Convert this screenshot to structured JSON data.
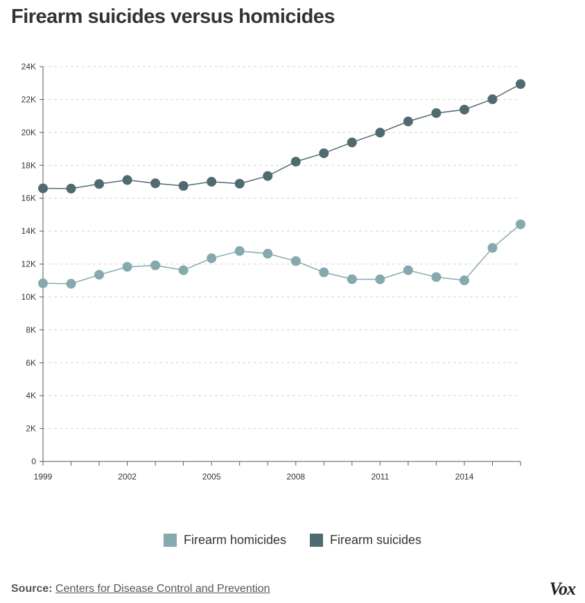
{
  "title": "Firearm suicides versus homicides",
  "chart_data": {
    "type": "line",
    "x": [
      1999,
      2000,
      2001,
      2002,
      2003,
      2004,
      2005,
      2006,
      2007,
      2008,
      2009,
      2010,
      2011,
      2012,
      2013,
      2014,
      2015,
      2016
    ],
    "x_tick_labels": [
      "1999",
      "2002",
      "2005",
      "2008",
      "2011",
      "2014"
    ],
    "x_tick_values": [
      1999,
      2002,
      2005,
      2008,
      2011,
      2014
    ],
    "y_tick_labels": [
      "0",
      "2K",
      "4K",
      "6K",
      "8K",
      "10K",
      "12K",
      "14K",
      "16K",
      "18K",
      "20K",
      "22K",
      "24K"
    ],
    "y_tick_values": [
      0,
      2000,
      4000,
      6000,
      8000,
      10000,
      12000,
      14000,
      16000,
      18000,
      20000,
      22000,
      24000
    ],
    "ylim": [
      0,
      24000
    ],
    "xlim": [
      1999,
      2016
    ],
    "grid": true,
    "legend_position": "bottom-center",
    "series": [
      {
        "name": "Firearm homicides",
        "color": "#85A9AE",
        "values": [
          10828,
          10801,
          11348,
          11829,
          11920,
          11624,
          12352,
          12791,
          12632,
          12179,
          11493,
          11078,
          11068,
          11622,
          11208,
          11008,
          12979,
          14415
        ]
      },
      {
        "name": "Firearm suicides",
        "color": "#4F6B70",
        "values": [
          16599,
          16586,
          16869,
          17108,
          16907,
          16750,
          17002,
          16883,
          17352,
          18223,
          18735,
          19392,
          19990,
          20666,
          21175,
          21386,
          22018,
          22938
        ]
      }
    ]
  },
  "legend": {
    "homicides_label": "Firearm homicides",
    "suicides_label": "Firearm suicides"
  },
  "source": {
    "label": "Source:",
    "link_text": "Centers for Disease Control and Prevention"
  },
  "brand": "Vox"
}
